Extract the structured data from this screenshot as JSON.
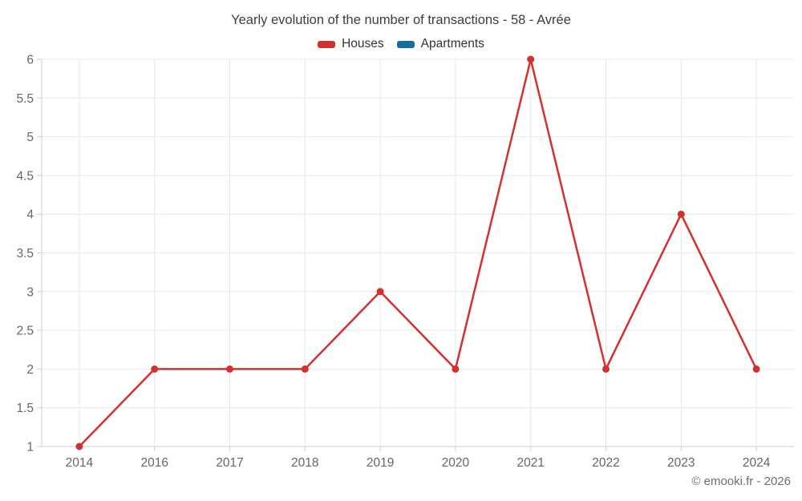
{
  "title": "Yearly evolution of the number of transactions - 58 - Avrée",
  "legend": {
    "items": [
      {
        "label": "Houses",
        "color": "#d2312d"
      },
      {
        "label": "Apartments",
        "color": "#146f9e"
      }
    ]
  },
  "footer": {
    "credit": "© emooki.fr - 2026"
  },
  "colors": {
    "grid": "#e8e8e8",
    "axis": "#cfcfcf",
    "tick": "#cfcfcf",
    "axis_label": "#666666",
    "title": "#3d3d3d"
  },
  "chart_data": {
    "type": "line",
    "title": "Yearly evolution of the number of transactions - 58 - Avrée",
    "categories": [
      "2014",
      "2016",
      "2017",
      "2018",
      "2019",
      "2020",
      "2021",
      "2022",
      "2023",
      "2024"
    ],
    "series": [
      {
        "name": "Houses",
        "color": "#d2312d",
        "values": [
          1,
          2,
          2,
          2,
          3,
          2,
          6,
          2,
          4,
          2
        ]
      },
      {
        "name": "Apartments",
        "color": "#146f9e",
        "values": []
      }
    ],
    "xlabel": "",
    "ylabel": "",
    "ylim": [
      1,
      6
    ],
    "yticks": [
      1,
      1.5,
      2,
      2.5,
      3,
      3.5,
      4,
      4.5,
      5,
      5.5,
      6
    ],
    "grid": true,
    "legend_position": "top",
    "marker": "circle",
    "annotations": []
  }
}
